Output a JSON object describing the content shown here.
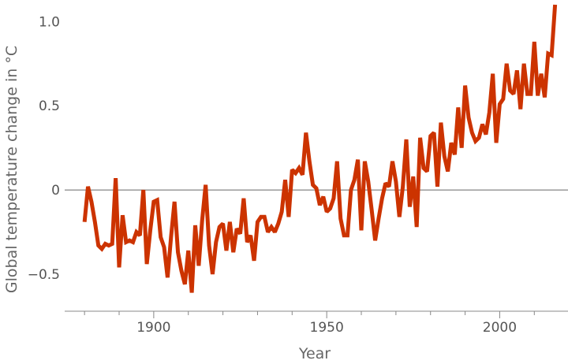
{
  "chart_data": {
    "type": "line",
    "title": "",
    "xlabel": "Year",
    "ylabel": "Global temperature change in °C",
    "xlim": [
      1877,
      2017
    ],
    "ylim": [
      -0.65,
      1.1
    ],
    "x_ticks": [
      1900,
      1950,
      2000
    ],
    "y_ticks": [
      -0.5,
      0,
      0.5,
      1.0
    ],
    "x_tick_labels": [
      "1900",
      "1950",
      "2000"
    ],
    "y_tick_labels": [
      "−0.5",
      "0",
      "0.5",
      "1.0"
    ],
    "grid": false,
    "zero_line": true,
    "series": [
      {
        "color": "#cc3300",
        "x": [
          1880,
          1881,
          1882,
          1883,
          1884,
          1885,
          1886,
          1887,
          1888,
          1889,
          1890,
          1891,
          1892,
          1893,
          1894,
          1895,
          1896,
          1897,
          1898,
          1899,
          1900,
          1901,
          1902,
          1903,
          1904,
          1905,
          1906,
          1907,
          1908,
          1909,
          1910,
          1911,
          1912,
          1913,
          1914,
          1915,
          1916,
          1917,
          1918,
          1919,
          1920,
          1921,
          1922,
          1923,
          1924,
          1925,
          1926,
          1927,
          1928,
          1929,
          1930,
          1931,
          1932,
          1933,
          1934,
          1935,
          1936,
          1937,
          1938,
          1939,
          1940,
          1941,
          1942,
          1943,
          1944,
          1945,
          1946,
          1947,
          1948,
          1949,
          1950,
          1951,
          1952,
          1953,
          1954,
          1955,
          1956,
          1957,
          1958,
          1959,
          1960,
          1961,
          1962,
          1963,
          1964,
          1965,
          1966,
          1967,
          1968,
          1969,
          1970,
          1971,
          1972,
          1973,
          1974,
          1975,
          1976,
          1977,
          1978,
          1979,
          1980,
          1981,
          1982,
          1983,
          1984,
          1985,
          1986,
          1987,
          1988,
          1989,
          1990,
          1991,
          1992,
          1993,
          1994,
          1995,
          1996,
          1997,
          1998,
          1999,
          2000,
          2001,
          2002,
          2003,
          2004,
          2005,
          2006,
          2007,
          2008,
          2009,
          2010,
          2011,
          2012,
          2013,
          2014,
          2015,
          2016
        ],
        "values": [
          -0.19,
          0.02,
          -0.07,
          -0.19,
          -0.33,
          -0.35,
          -0.32,
          -0.33,
          -0.32,
          0.07,
          -0.46,
          -0.15,
          -0.31,
          -0.3,
          -0.31,
          -0.25,
          -0.27,
          0.0,
          -0.44,
          -0.24,
          -0.07,
          -0.06,
          -0.28,
          -0.34,
          -0.52,
          -0.28,
          -0.07,
          -0.37,
          -0.48,
          -0.56,
          -0.36,
          -0.61,
          -0.21,
          -0.45,
          -0.18,
          0.03,
          -0.33,
          -0.5,
          -0.31,
          -0.22,
          -0.2,
          -0.36,
          -0.19,
          -0.37,
          -0.23,
          -0.26,
          -0.05,
          -0.31,
          -0.27,
          -0.42,
          -0.19,
          -0.16,
          -0.16,
          -0.25,
          -0.22,
          -0.25,
          -0.2,
          -0.13,
          0.06,
          -0.16,
          0.12,
          0.1,
          0.13,
          0.09,
          0.34,
          0.17,
          0.03,
          0.01,
          -0.09,
          -0.04,
          -0.13,
          -0.11,
          -0.05,
          0.17,
          -0.17,
          -0.27,
          -0.27,
          0.0,
          0.06,
          0.18,
          -0.24,
          0.17,
          0.05,
          -0.12,
          -0.3,
          -0.17,
          -0.05,
          0.04,
          0.02,
          0.17,
          0.05,
          -0.16,
          0.02,
          0.3,
          -0.1,
          0.08,
          -0.22,
          0.31,
          0.13,
          0.11,
          0.32,
          0.34,
          0.02,
          0.4,
          0.2,
          0.11,
          0.28,
          0.21,
          0.49,
          0.25,
          0.62,
          0.43,
          0.34,
          0.29,
          0.31,
          0.39,
          0.33,
          0.46,
          0.69,
          0.28,
          0.51,
          0.54,
          0.75,
          0.59,
          0.57,
          0.71,
          0.48,
          0.75,
          0.57,
          0.57,
          0.88,
          0.56,
          0.69,
          0.55,
          0.81,
          0.8,
          1.1
        ]
      }
    ]
  }
}
